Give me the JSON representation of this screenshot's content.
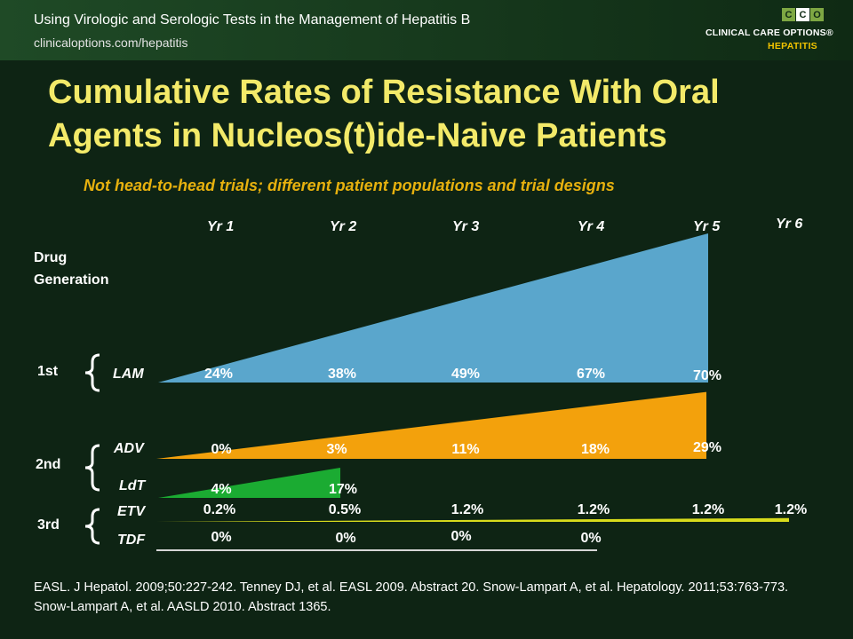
{
  "header": {
    "title": "Using Virologic and Serologic Tests in the Management of Hepatitis B",
    "url": "clinicaloptions.com/hepatitis",
    "logo_letters": [
      "C",
      "C",
      "O"
    ],
    "logo_line1": "CLINICAL CARE OPTIONS®",
    "logo_line2": "HEPATITIS"
  },
  "slide": {
    "title": "Cumulative Rates of Resistance With Oral Agents in Nucleos(t)ide-Naive Patients",
    "subtitle": "Not head-to-head trials; different patient populations and trial designs",
    "drug_generation_label_1": "Drug",
    "drug_generation_label_2": "Generation",
    "generations": [
      "1st",
      "2nd",
      "3rd"
    ],
    "footnote": "EASL. J Hepatol. 2009;50:227-242. Tenney DJ, et al. EASL 2009. Abstract 20. Snow-Lampart A, et al. Hepatology. 2011;53:763-773. Snow-Lampart A, et al. AASLD 2010. Abstract 1365."
  },
  "chart_data": {
    "type": "area",
    "title": "Cumulative Rates of Resistance With Oral Agents in Nucleos(t)ide-Naive Patients",
    "x_labels": [
      "Yr 1",
      "Yr 2",
      "Yr 3",
      "Yr 4",
      "Yr 5",
      "Yr 6"
    ],
    "series": [
      {
        "name": "LAM",
        "generation": "1st",
        "color": "#5aa6cc",
        "labels": [
          "24%",
          "38%",
          "49%",
          "67%",
          "70%"
        ],
        "values": [
          24,
          38,
          49,
          67,
          70
        ]
      },
      {
        "name": "ADV",
        "generation": "2nd",
        "color": "#f3a10c",
        "labels": [
          "0%",
          "3%",
          "11%",
          "18%",
          "29%"
        ],
        "values": [
          0,
          3,
          11,
          18,
          29
        ]
      },
      {
        "name": "LdT",
        "generation": "2nd",
        "color": "#1bab32",
        "labels": [
          "4%",
          "17%"
        ],
        "values": [
          4,
          17
        ]
      },
      {
        "name": "ETV",
        "generation": "3rd",
        "color": "#d8dc1c",
        "labels": [
          "0.2%",
          "0.5%",
          "1.2%",
          "1.2%",
          "1.2%",
          "1.2%"
        ],
        "values": [
          0.2,
          0.5,
          1.2,
          1.2,
          1.2,
          1.2
        ]
      },
      {
        "name": "TDF",
        "generation": "3rd",
        "color": "#d6d6d6",
        "labels": [
          "0%",
          "0%",
          "0%",
          "0%"
        ],
        "values": [
          0,
          0,
          0,
          0
        ]
      }
    ]
  }
}
